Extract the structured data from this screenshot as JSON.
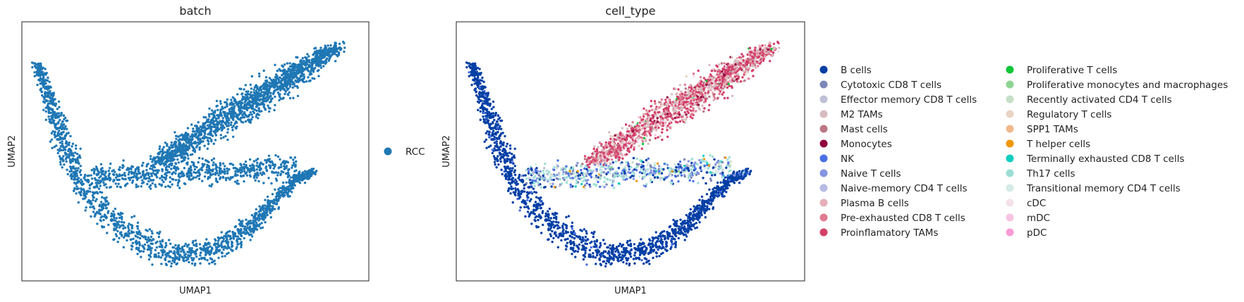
{
  "chart_data": [
    {
      "type": "scatter",
      "title": "batch",
      "xlabel": "UMAP1",
      "ylabel": "UMAP2",
      "grid": false,
      "legend_position": "right",
      "legend": [
        {
          "label": "RCC",
          "color": "#1f77b4"
        }
      ]
    },
    {
      "type": "scatter",
      "title": "cell_type",
      "xlabel": "UMAP1",
      "ylabel": "UMAP2",
      "grid": false,
      "legend_position": "right",
      "legend": [
        {
          "label": "B cells",
          "color": "#023fa5"
        },
        {
          "label": "Cytotoxic CD8 T cells",
          "color": "#7d87b9"
        },
        {
          "label": "Effector memory CD8 T cells",
          "color": "#bec1d4"
        },
        {
          "label": "M2 TAMs",
          "color": "#d6bcc0"
        },
        {
          "label": "Mast cells",
          "color": "#bb7784"
        },
        {
          "label": "Monocytes",
          "color": "#8e063b"
        },
        {
          "label": "NK",
          "color": "#4a6fe3"
        },
        {
          "label": "Naive T cells",
          "color": "#8595e1"
        },
        {
          "label": "Naive-memory CD4 T cells",
          "color": "#b5bbe3"
        },
        {
          "label": "Plasma B cells",
          "color": "#e6afb9"
        },
        {
          "label": "Pre-exhausted CD8 T cells",
          "color": "#e07b91"
        },
        {
          "label": "Proinflamatory TAMs",
          "color": "#d33f6a"
        },
        {
          "label": "Proliferative T cells",
          "color": "#11c638"
        },
        {
          "label": "Proliferative monocytes and macrophages",
          "color": "#8dd593"
        },
        {
          "label": "Recently activated CD4 T cells",
          "color": "#c6dec7"
        },
        {
          "label": "Regulatory T cells",
          "color": "#ead3c6"
        },
        {
          "label": "SPP1 TAMs",
          "color": "#f0b98d"
        },
        {
          "label": "T helper cells",
          "color": "#ef9708"
        },
        {
          "label": "Terminally exhausted CD8 T cells",
          "color": "#0fcfc0"
        },
        {
          "label": "Th17 cells",
          "color": "#9cded6"
        },
        {
          "label": "Transitional memory CD4 T cells",
          "color": "#d5eae7"
        },
        {
          "label": "cDC",
          "color": "#f3e1eb"
        },
        {
          "label": "mDC",
          "color": "#f6c4e1"
        },
        {
          "label": "pDC",
          "color": "#f79cd4"
        }
      ]
    }
  ]
}
